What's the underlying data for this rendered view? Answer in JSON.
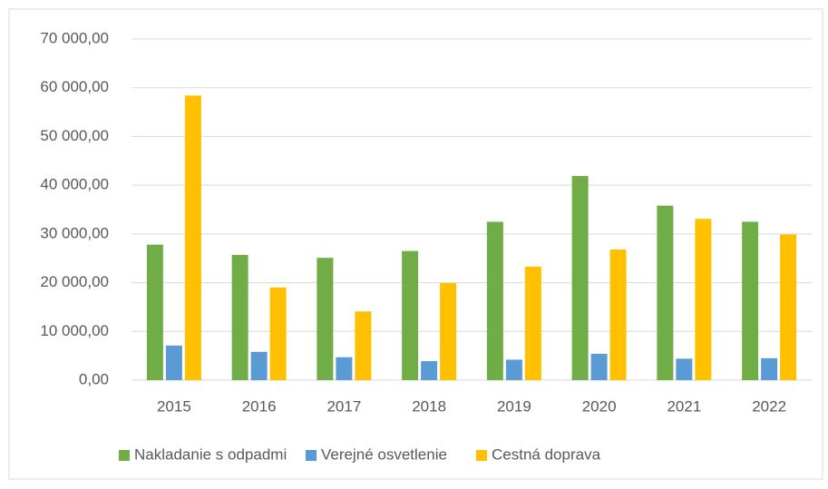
{
  "chart_data": {
    "type": "bar",
    "categories": [
      "2015",
      "2016",
      "2017",
      "2018",
      "2019",
      "2020",
      "2021",
      "2022"
    ],
    "series": [
      {
        "name": "Nakladanie s odpadmi",
        "color": "#70ad47",
        "values": [
          27800,
          25700,
          25100,
          26500,
          32500,
          41900,
          35800,
          32500
        ]
      },
      {
        "name": "Verejné osvetlenie",
        "color": "#5b9bd5",
        "values": [
          7100,
          5800,
          4700,
          3900,
          4200,
          5400,
          4400,
          4500
        ]
      },
      {
        "name": "Cestná doprava",
        "color": "#ffc000",
        "values": [
          58400,
          19000,
          14100,
          19900,
          23300,
          26800,
          33100,
          29900
        ]
      }
    ],
    "ylim": [
      0,
      70000
    ],
    "yticks": [
      {
        "value": 0,
        "label": "0,00"
      },
      {
        "value": 10000,
        "label": "10 000,00"
      },
      {
        "value": 20000,
        "label": "20 000,00"
      },
      {
        "value": 30000,
        "label": "30 000,00"
      },
      {
        "value": 40000,
        "label": "40 000,00"
      },
      {
        "value": 50000,
        "label": "50 000,00"
      },
      {
        "value": 60000,
        "label": "60 000,00"
      },
      {
        "value": 70000,
        "label": "70 000,00"
      }
    ],
    "grid": true,
    "legend": "bottom"
  }
}
